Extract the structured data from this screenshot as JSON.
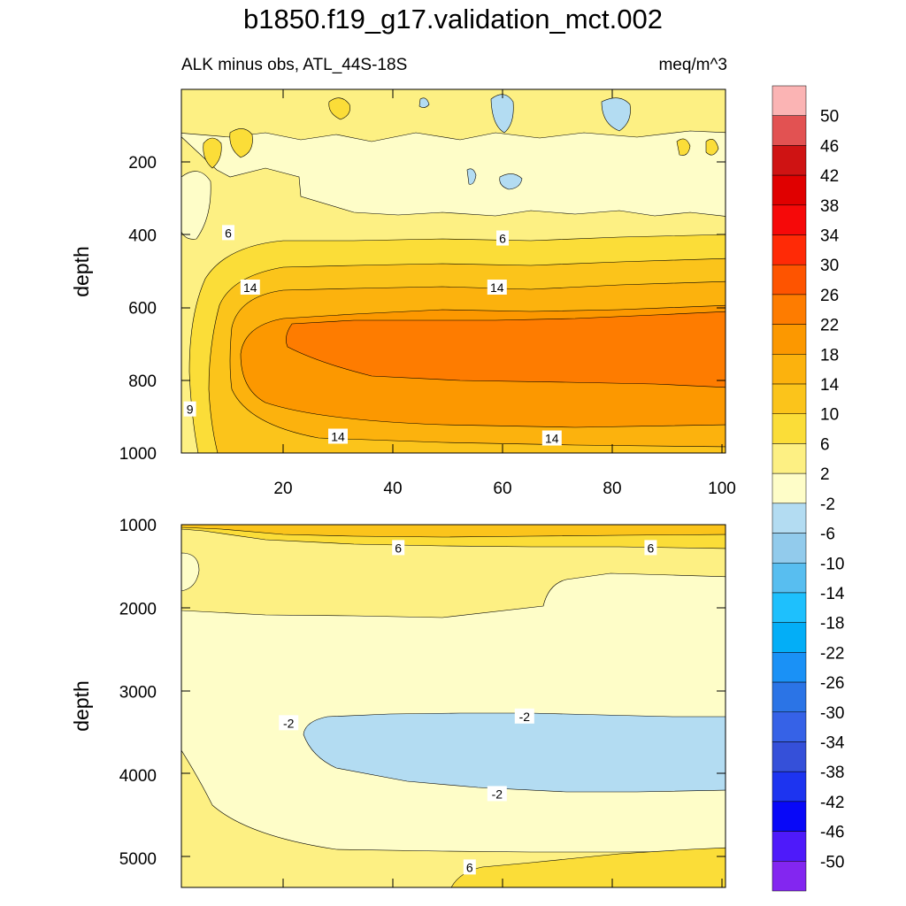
{
  "title": "b1850.f19_g17.validation_mct.002",
  "subtitle_left": "ALK minus obs, ATL_44S-18S",
  "subtitle_right": "meq/m^3",
  "colorbar": {
    "labels": [
      "50",
      "46",
      "42",
      "38",
      "34",
      "30",
      "26",
      "22",
      "18",
      "14",
      "10",
      "6",
      "2",
      "-2",
      "-6",
      "-10",
      "-14",
      "-18",
      "-22",
      "-26",
      "-30",
      "-34",
      "-38",
      "-42",
      "-46",
      "-50"
    ],
    "colors": [
      "#fbb4b4",
      "#e25252",
      "#cf1313",
      "#e00000",
      "#f60909",
      "#ff2a06",
      "#fe5400",
      "#fe7c00",
      "#fc9800",
      "#fcb20d",
      "#fbc41b",
      "#fbdd38",
      "#fdf083",
      "#fefdc8",
      "#b3dcf2",
      "#92cbec",
      "#58bef0",
      "#1ec0fd",
      "#03aef7",
      "#1a91f6",
      "#2b74e6",
      "#3662e7",
      "#3550d9",
      "#1d34f0",
      "#0808f8",
      "#4e1afa",
      "#8326f0"
    ]
  },
  "chart_data": [
    {
      "type": "heatmap",
      "panel": "upper",
      "xlabel": "",
      "ylabel": "depth",
      "xlim": [
        0,
        100
      ],
      "ylim": [
        1000,
        0
      ],
      "xticks": [
        "20",
        "40",
        "60",
        "80",
        "100"
      ],
      "yticks": [
        "200",
        "400",
        "600",
        "800",
        "1000"
      ],
      "contour_labels": [
        {
          "text": "6",
          "x": 10,
          "y": 395
        },
        {
          "text": "6",
          "x": 60,
          "y": 410
        },
        {
          "text": "14",
          "x": 14,
          "y": 545
        },
        {
          "text": "14",
          "x": 59,
          "y": 545
        },
        {
          "text": "9",
          "x": 3,
          "y": 880
        },
        {
          "text": "14",
          "x": 30,
          "y": 955
        },
        {
          "text": "14",
          "x": 69,
          "y": 960
        }
      ]
    },
    {
      "type": "heatmap",
      "panel": "lower",
      "xlabel": "",
      "ylabel": "depth",
      "xlim": [
        0,
        100
      ],
      "ylim": [
        5350,
        1000
      ],
      "xticks": [],
      "yticks": [
        "1000",
        "2000",
        "3000",
        "4000",
        "5000"
      ],
      "contour_labels": [
        {
          "text": "6",
          "x": 41,
          "y": 1280
        },
        {
          "text": "6",
          "x": 87,
          "y": 1280
        },
        {
          "text": "-2",
          "x": 21,
          "y": 3380
        },
        {
          "text": "-2",
          "x": 64,
          "y": 3300
        },
        {
          "text": "-2",
          "x": 59,
          "y": 4230
        },
        {
          "text": "6",
          "x": 54,
          "y": 5110
        }
      ]
    }
  ]
}
